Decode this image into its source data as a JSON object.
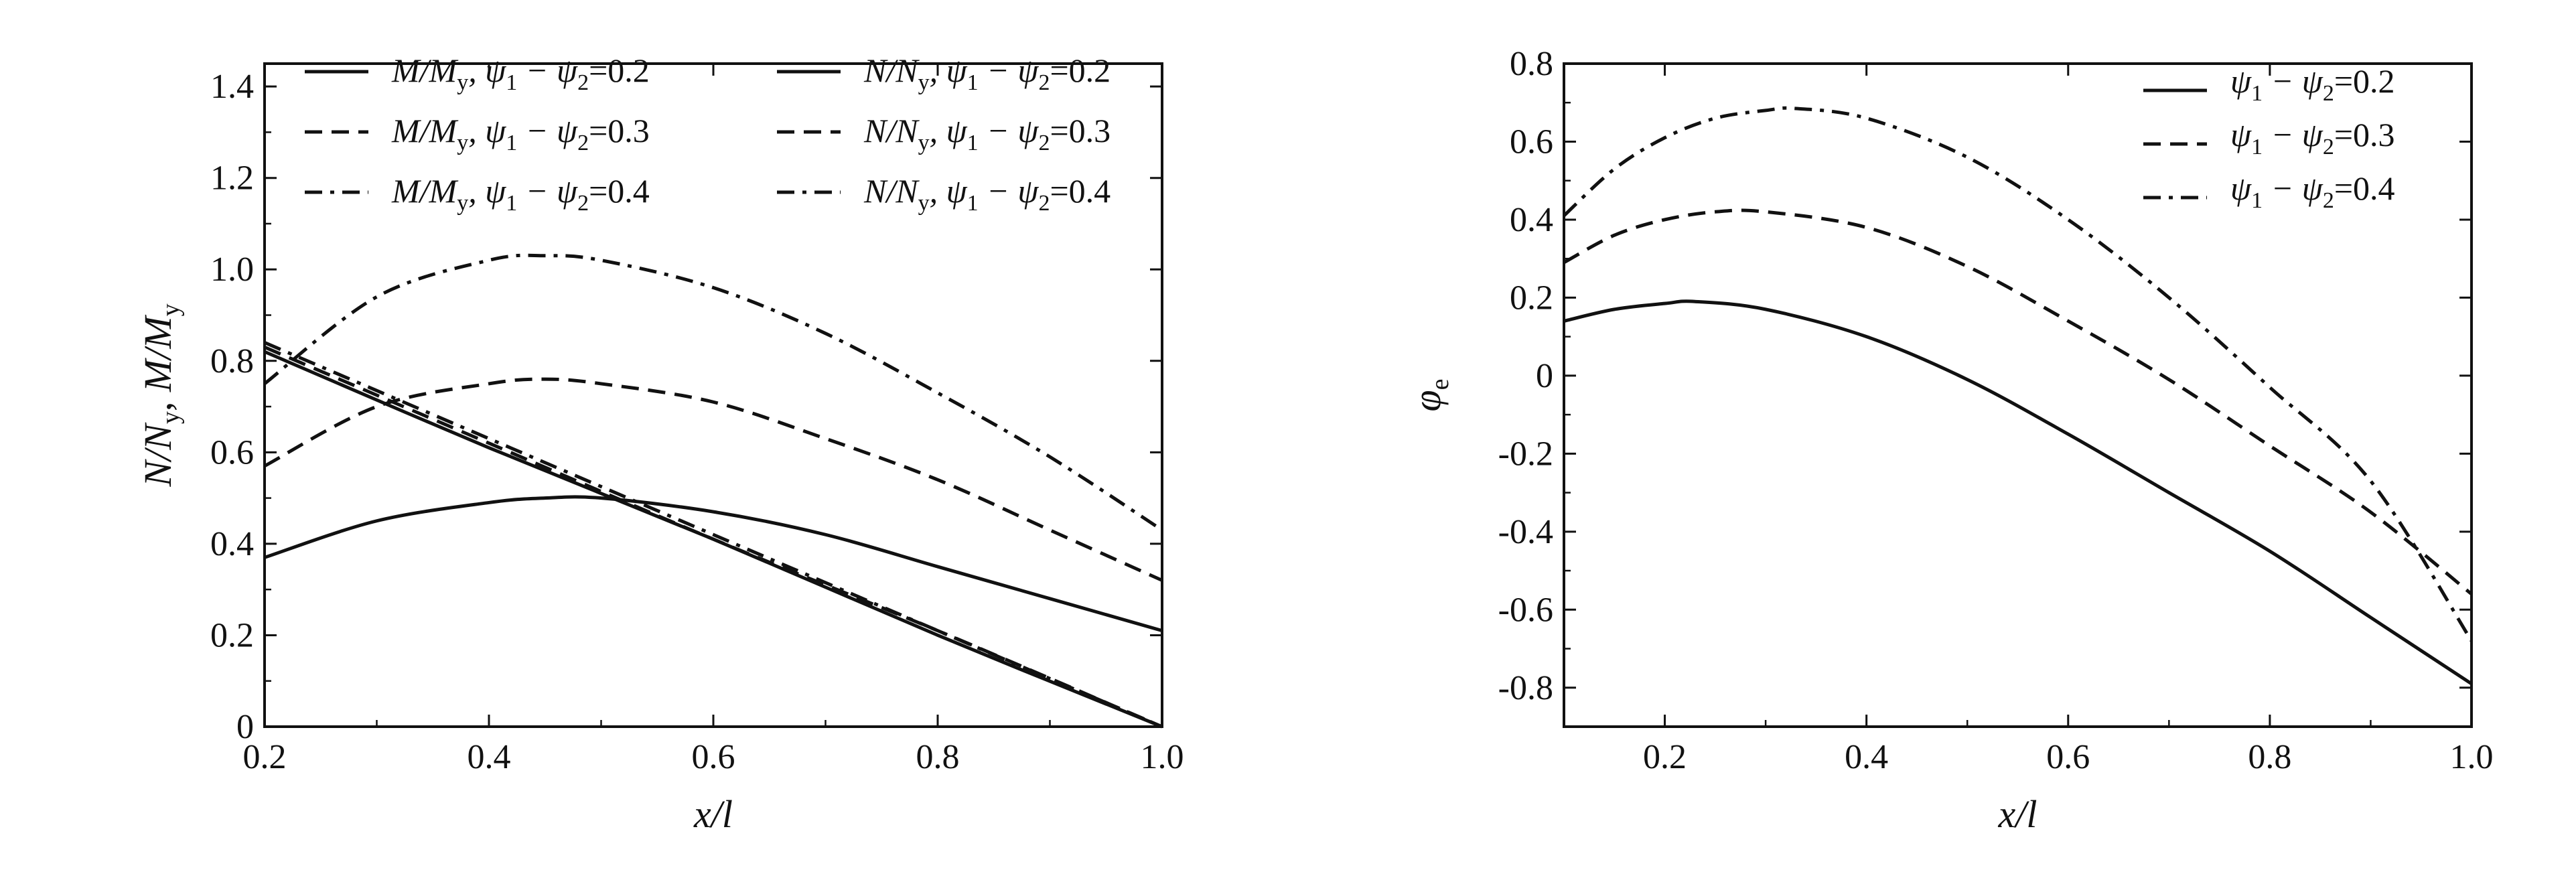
{
  "chart_data": [
    {
      "type": "line",
      "xlabel": "x/l",
      "ylabel": "N/Ny, M/My",
      "xlim": [
        0.2,
        1.0
      ],
      "ylim": [
        0,
        1.45
      ],
      "xticks": [
        0.2,
        0.4,
        0.6,
        0.8,
        1.0
      ],
      "xtick_labels": [
        "0.2",
        "0.4",
        "0.6",
        "0.8",
        "1.0"
      ],
      "yticks": [
        0,
        0.2,
        0.4,
        0.6,
        0.8,
        1.0,
        1.2,
        1.4
      ],
      "ytick_labels": [
        "0",
        "0.2",
        "0.4",
        "0.6",
        "0.8",
        "1.0",
        "1.2",
        "1.4"
      ],
      "grid": false,
      "legend_position": "top",
      "series": [
        {
          "name": "M/My, ψ1−ψ2=0.2",
          "style": "solid",
          "x": [
            0.2,
            0.3,
            0.4,
            0.45,
            0.5,
            0.6,
            0.7,
            0.8,
            0.9,
            1.0
          ],
          "y": [
            0.37,
            0.45,
            0.49,
            0.5,
            0.5,
            0.47,
            0.42,
            0.35,
            0.28,
            0.21
          ]
        },
        {
          "name": "M/My, ψ1−ψ2=0.3",
          "style": "dashed",
          "x": [
            0.2,
            0.3,
            0.4,
            0.45,
            0.5,
            0.6,
            0.7,
            0.8,
            0.9,
            1.0
          ],
          "y": [
            0.57,
            0.7,
            0.75,
            0.76,
            0.75,
            0.71,
            0.63,
            0.54,
            0.43,
            0.32
          ]
        },
        {
          "name": "M/My, ψ1−ψ2=0.4",
          "style": "dashdot",
          "x": [
            0.2,
            0.3,
            0.4,
            0.45,
            0.5,
            0.6,
            0.7,
            0.8,
            0.9,
            1.0
          ],
          "y": [
            0.75,
            0.94,
            1.02,
            1.03,
            1.02,
            0.96,
            0.86,
            0.73,
            0.59,
            0.43
          ]
        },
        {
          "name": "N/Ny, ψ1−ψ2=0.2",
          "style": "solid",
          "x": [
            0.2,
            0.4,
            0.6,
            0.8,
            1.0
          ],
          "y": [
            0.82,
            0.61,
            0.41,
            0.2,
            0.0
          ]
        },
        {
          "name": "N/Ny, ψ1−ψ2=0.3",
          "style": "dashed",
          "x": [
            0.2,
            0.4,
            0.6,
            0.8,
            1.0
          ],
          "y": [
            0.83,
            0.62,
            0.41,
            0.21,
            0.0
          ]
        },
        {
          "name": "N/Ny, ψ1−ψ2=0.4",
          "style": "dashdot",
          "x": [
            0.2,
            0.4,
            0.6,
            0.8,
            1.0
          ],
          "y": [
            0.84,
            0.63,
            0.42,
            0.21,
            0.0
          ]
        }
      ]
    },
    {
      "type": "line",
      "xlabel": "x/l",
      "ylabel": "φe",
      "xlim": [
        0.1,
        1.0
      ],
      "ylim": [
        -0.9,
        0.8
      ],
      "xticks": [
        0.2,
        0.4,
        0.6,
        0.8,
        1.0
      ],
      "xtick_labels": [
        "0.2",
        "0.4",
        "0.6",
        "0.8",
        "1.0"
      ],
      "yticks": [
        -0.8,
        -0.6,
        -0.4,
        -0.2,
        0,
        0.2,
        0.4,
        0.6,
        0.8
      ],
      "ytick_labels": [
        "-0.8",
        "-0.6",
        "-0.4",
        "-0.2",
        "0",
        "0.2",
        "0.4",
        "0.6",
        "0.8"
      ],
      "grid": false,
      "legend_position": "top-right",
      "series": [
        {
          "name": "ψ1−ψ2=0.2",
          "style": "solid",
          "x": [
            0.1,
            0.15,
            0.2,
            0.23,
            0.3,
            0.4,
            0.5,
            0.6,
            0.7,
            0.8,
            0.9,
            1.0
          ],
          "y": [
            0.14,
            0.17,
            0.185,
            0.19,
            0.17,
            0.1,
            -0.01,
            -0.15,
            -0.3,
            -0.45,
            -0.62,
            -0.79
          ]
        },
        {
          "name": "ψ1−ψ2=0.3",
          "style": "dashed",
          "x": [
            0.1,
            0.15,
            0.2,
            0.25,
            0.3,
            0.4,
            0.5,
            0.6,
            0.7,
            0.8,
            0.9,
            1.0
          ],
          "y": [
            0.29,
            0.36,
            0.4,
            0.42,
            0.42,
            0.38,
            0.28,
            0.14,
            -0.01,
            -0.18,
            -0.35,
            -0.56
          ]
        },
        {
          "name": "ψ1−ψ2=0.4",
          "style": "dashdot",
          "x": [
            0.1,
            0.15,
            0.2,
            0.25,
            0.3,
            0.33,
            0.4,
            0.5,
            0.6,
            0.7,
            0.8,
            0.9,
            1.0
          ],
          "y": [
            0.41,
            0.53,
            0.61,
            0.66,
            0.68,
            0.685,
            0.66,
            0.56,
            0.4,
            0.2,
            -0.03,
            -0.27,
            -0.68
          ]
        }
      ]
    }
  ],
  "panels": [
    {
      "ylabel_parts": {
        "a": "N/N",
        "a_sub": "y",
        "sep": ", ",
        "b": "M/M",
        "b_sub": "y"
      },
      "xlabel": "x/l",
      "legend": [
        {
          "text_a": "M/M",
          "sub": "y",
          "text_b": ", ψ",
          "s1": "1",
          "mid": " − ψ",
          "s2": "2",
          "val": "=0.2"
        },
        {
          "text_a": "M/M",
          "sub": "y",
          "text_b": ", ψ",
          "s1": "1",
          "mid": " − ψ",
          "s2": "2",
          "val": "=0.3"
        },
        {
          "text_a": "M/M",
          "sub": "y",
          "text_b": ", ψ",
          "s1": "1",
          "mid": " − ψ",
          "s2": "2",
          "val": "=0.4"
        },
        {
          "text_a": "N/N",
          "sub": "y",
          "text_b": ", ψ",
          "s1": "1",
          "mid": " − ψ",
          "s2": "2",
          "val": "=0.2"
        },
        {
          "text_a": "N/N",
          "sub": "y",
          "text_b": ", ψ",
          "s1": "1",
          "mid": " − ψ",
          "s2": "2",
          "val": "=0.3"
        },
        {
          "text_a": "N/N",
          "sub": "y",
          "text_b": ", ψ",
          "s1": "1",
          "mid": " − ψ",
          "s2": "2",
          "val": "=0.4"
        }
      ]
    },
    {
      "ylabel_parts": {
        "a": "φ",
        "a_sub": "e"
      },
      "xlabel": "x/l",
      "legend": [
        {
          "text_a": "",
          "sub": "",
          "text_b": "ψ",
          "s1": "1",
          "mid": " − ψ",
          "s2": "2",
          "val": "=0.2"
        },
        {
          "text_a": "",
          "sub": "",
          "text_b": "ψ",
          "s1": "1",
          "mid": " − ψ",
          "s2": "2",
          "val": "=0.3"
        },
        {
          "text_a": "",
          "sub": "",
          "text_b": "ψ",
          "s1": "1",
          "mid": " − ψ",
          "s2": "2",
          "val": "=0.4"
        }
      ]
    }
  ]
}
